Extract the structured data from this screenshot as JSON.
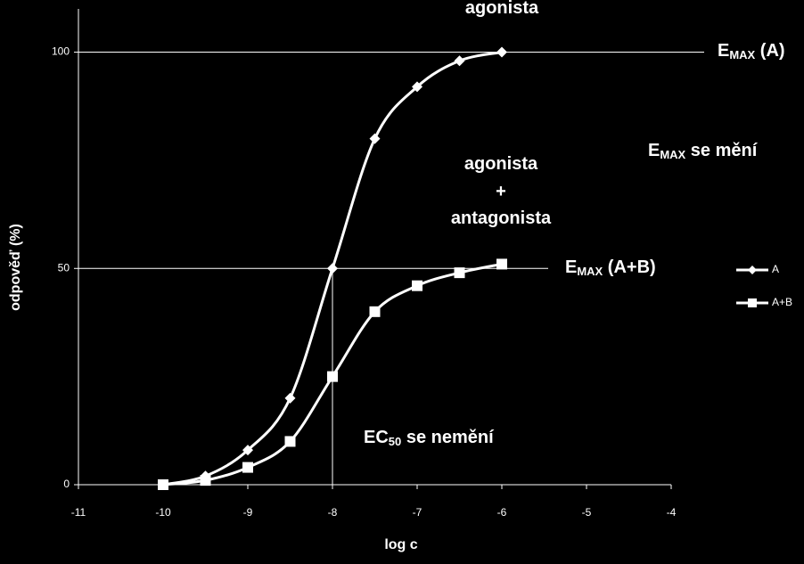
{
  "chart_data": {
    "type": "line",
    "x_label": "log c",
    "y_label": "odpověď (%)",
    "x": [
      -10,
      -9.5,
      -9,
      -8.5,
      -8,
      -7.5,
      -7,
      -6.5,
      -6
    ],
    "series": [
      {
        "name": "A",
        "color": "#ffffff",
        "marker": "diamond",
        "values": [
          0,
          2,
          8,
          20,
          50,
          80,
          92,
          98,
          100
        ]
      },
      {
        "name": "A+B",
        "color": "#ffffff",
        "marker": "square",
        "values": [
          0,
          1,
          4,
          10,
          25,
          40,
          46,
          49,
          51
        ]
      }
    ],
    "xlim": [
      -11,
      -4
    ],
    "xticks": [
      -11,
      -10,
      -9,
      -8,
      -7,
      -6,
      -5,
      -4
    ],
    "ylim": [
      0,
      110
    ],
    "yticks": [
      0,
      50,
      100
    ],
    "grid": true,
    "legend": "right",
    "reference_lines": [
      {
        "x": -8,
        "y": 50
      }
    ],
    "annotations": [
      {
        "text": "agonista"
      },
      {
        "text": "E",
        "sub": "MAX",
        "rest": " (A)"
      },
      {
        "text": "E",
        "sub": "MAX",
        "rest": " se mění"
      },
      {
        "text": "agonista"
      },
      {
        "text": "+"
      },
      {
        "text": "antagonista"
      },
      {
        "text": "E",
        "sub": "MAX",
        "rest": " (A+B)"
      },
      {
        "text": "EC",
        "sub": "50",
        "rest": " se nemění"
      }
    ]
  }
}
